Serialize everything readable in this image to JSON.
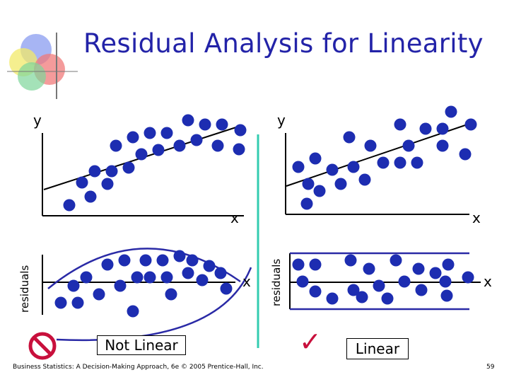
{
  "title": "Residual Analysis for Linearity",
  "labels": {
    "y": "y",
    "x": "x",
    "residuals": "residuals"
  },
  "verdicts": {
    "not_linear": "Not Linear",
    "linear": "Linear",
    "check_glyph": "✓"
  },
  "footer": "Business Statistics: A Decision-Making Approach, 6e © 2005 Prentice-Hall, Inc.",
  "page_number": "59",
  "icons": [
    "logo-circles-icon",
    "prohibited-icon",
    "checkmark-icon"
  ],
  "colors": {
    "title": "#2323a8",
    "dot": "#1d2db1",
    "divider": "#33ccb0",
    "band": "#2a2aa6"
  }
}
